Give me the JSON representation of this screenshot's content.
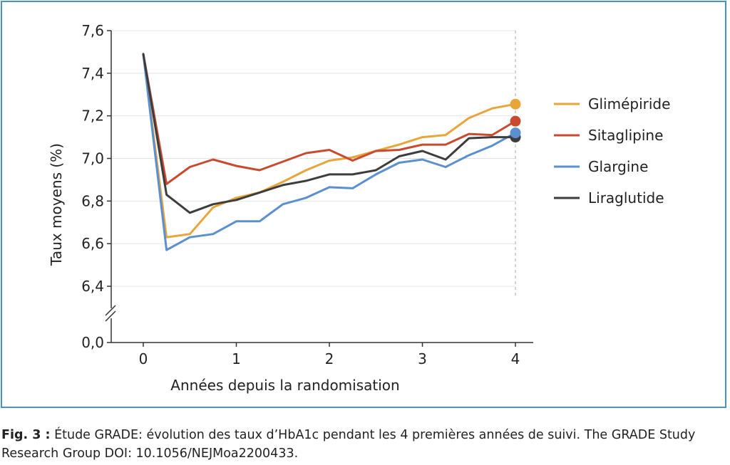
{
  "chart_data": {
    "type": "line",
    "xlabel": "Années depuis la randomisation",
    "ylabel": "Taux moyens (%)",
    "xlim": [
      0,
      4
    ],
    "ylim": [
      6.3,
      7.6
    ],
    "xticks": [
      0,
      1,
      2,
      3,
      4
    ],
    "xtick_labels": [
      "0",
      "1",
      "2",
      "3",
      "4"
    ],
    "yticks": [
      6.4,
      6.6,
      6.8,
      7.0,
      7.2,
      7.4,
      7.6
    ],
    "ytick_labels": [
      "6,4",
      "6,6",
      "6,8",
      "7,0",
      "7,2",
      "7,4",
      "7,6"
    ],
    "axis_break_label": "0,0",
    "grid": "horizontal",
    "legend_position": "right",
    "x": [
      0,
      0.25,
      0.5,
      0.75,
      1,
      1.25,
      1.5,
      1.75,
      2,
      2.25,
      2.5,
      2.75,
      3,
      3.25,
      3.5,
      3.75,
      4
    ],
    "series": [
      {
        "name": "Glimépiride",
        "color": "#e8a53a",
        "values": [
          7.49,
          6.63,
          6.645,
          6.77,
          6.815,
          6.84,
          6.89,
          6.945,
          6.99,
          7.005,
          7.035,
          7.065,
          7.1,
          7.11,
          7.19,
          7.235,
          7.255
        ]
      },
      {
        "name": "Sitaglipine",
        "color": "#c84a2f",
        "values": [
          7.49,
          6.88,
          6.96,
          6.995,
          6.965,
          6.945,
          6.985,
          7.025,
          7.04,
          6.99,
          7.035,
          7.04,
          7.065,
          7.065,
          7.115,
          7.11,
          7.175
        ]
      },
      {
        "name": "Glargine",
        "color": "#5b8fcf",
        "values": [
          7.49,
          6.57,
          6.63,
          6.645,
          6.705,
          6.705,
          6.785,
          6.815,
          6.865,
          6.86,
          6.925,
          6.98,
          6.995,
          6.96,
          7.015,
          7.06,
          7.12
        ]
      },
      {
        "name": "Liraglutide",
        "color": "#3d3d3d",
        "values": [
          7.49,
          6.83,
          6.745,
          6.785,
          6.805,
          6.84,
          6.875,
          6.895,
          6.925,
          6.925,
          6.945,
          7.01,
          7.035,
          6.995,
          7.095,
          7.1,
          7.1
        ]
      }
    ]
  },
  "caption": {
    "label": "Fig. 3 :",
    "text": " Étude GRADE: évolution des taux d’HbA1c pendant les 4 premières années de suivi. The GRADE Study Research Group DOI: 10.1056/NEJMoa2200433."
  }
}
